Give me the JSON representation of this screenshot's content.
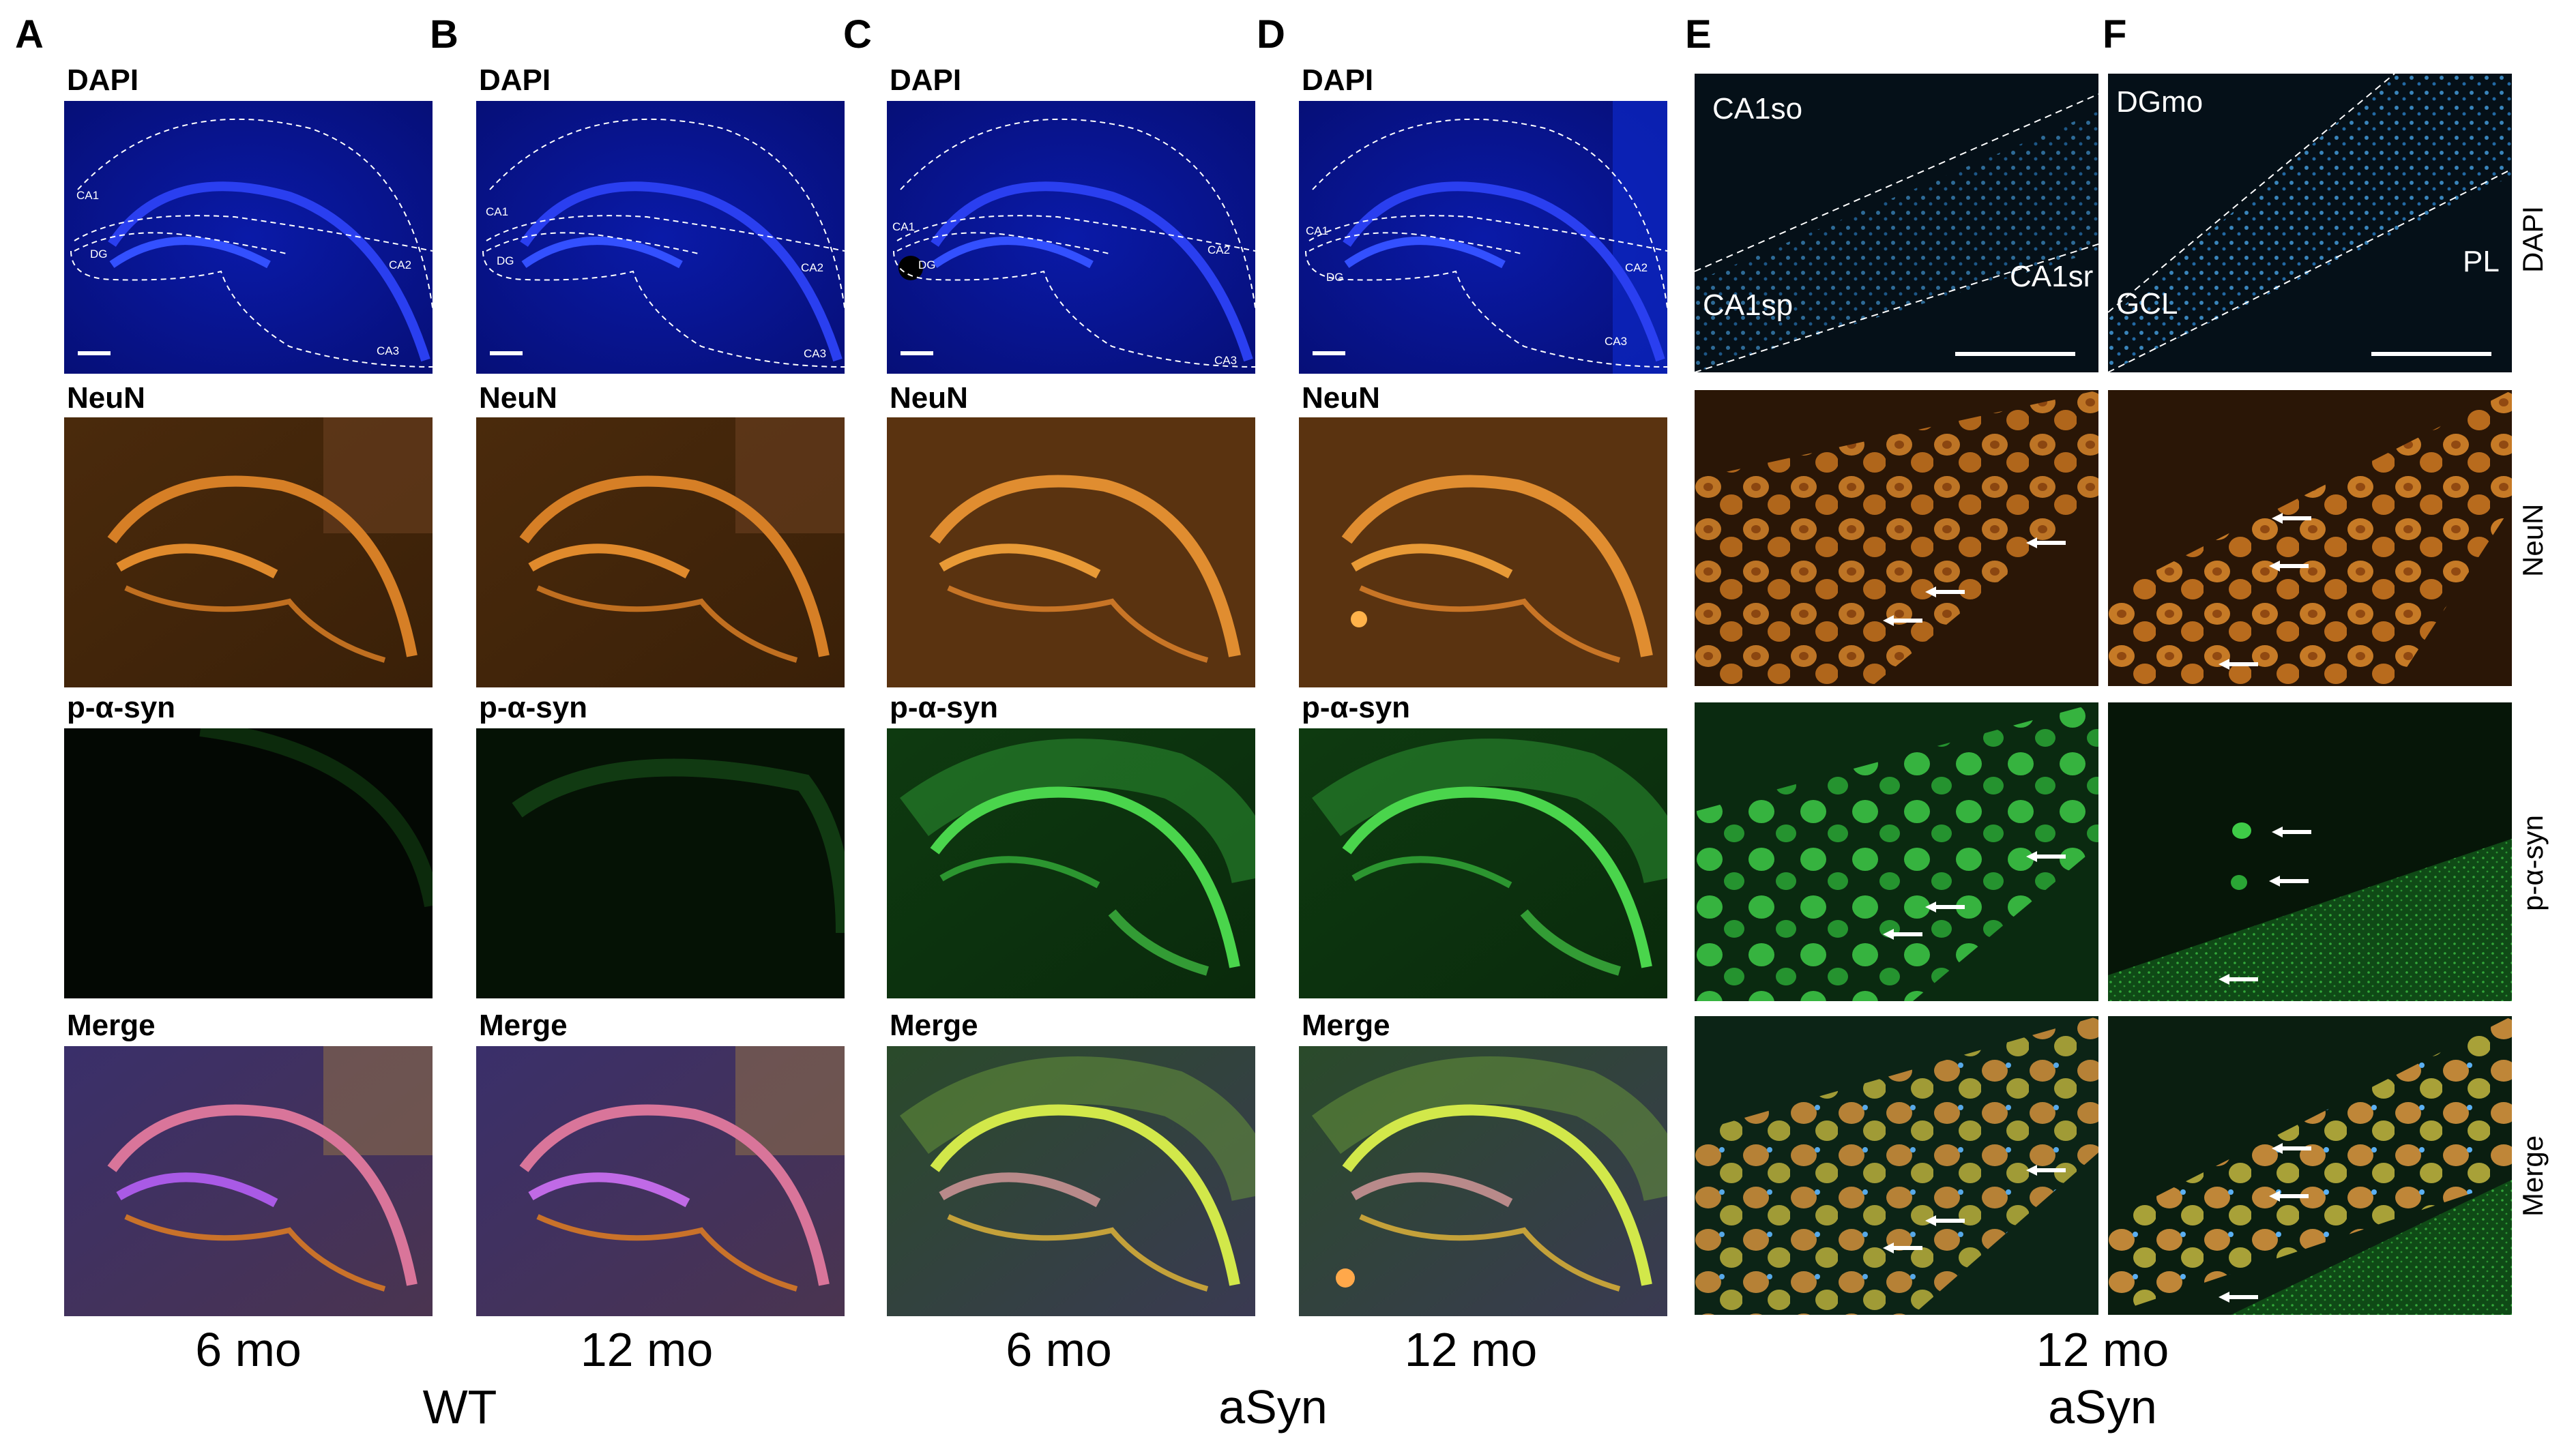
{
  "panel_letters": [
    "A",
    "B",
    "C",
    "D",
    "E",
    "F"
  ],
  "channels": {
    "dapi": "DAPI",
    "neun": "NeuN",
    "pasyn": "p-α-syn",
    "merge": "Merge"
  },
  "region_labels_small": {
    "ca1": "CA1",
    "dg": "DG",
    "ca2": "CA2",
    "ca3": "CA3"
  },
  "panel_e_regions": {
    "so": "CA1so",
    "sp": "CA1sp",
    "sr": "CA1sr"
  },
  "panel_f_regions": {
    "mo": "DGmo",
    "gcl": "GCL",
    "pl": "PL"
  },
  "timepoints": {
    "a": "6 mo",
    "b": "12 mo",
    "c": "6 mo",
    "d": "12 mo",
    "ef": "12 mo"
  },
  "genotypes": {
    "wt": "WT",
    "asyn_cd": "aSyn",
    "asyn_ef": "aSyn"
  },
  "colors": {
    "dapi": "#0a1a9a",
    "neun": "#b5631a",
    "pasyn": "#35b43a",
    "background": "#ffffff"
  }
}
